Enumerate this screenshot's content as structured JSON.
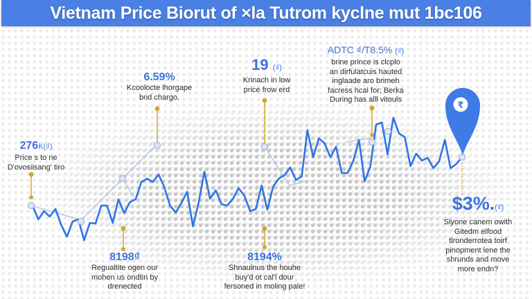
{
  "title": "Vietnam Price Biorut of ×la Tutrom kyclne mut 1bc106",
  "colors": {
    "title_bar": "#4a7fe3",
    "line": "#2f74e6",
    "connector": "#d4a72c",
    "accent_text": "#3b73dc",
    "secondary_line": "#b8c8e6"
  },
  "chart_data": {
    "type": "line",
    "title": "Vietnam Price Biorut of ×la Tutrom kyclne mut 1bc106",
    "xlabel": "",
    "ylabel": "",
    "axes_visible": false,
    "grid": false,
    "values": [
      53,
      33,
      45,
      37,
      48,
      25,
      8,
      30,
      33,
      3,
      28,
      27,
      53,
      53,
      28,
      62,
      42,
      58,
      62,
      87,
      92,
      87,
      98,
      80,
      53,
      43,
      57,
      73,
      23,
      57,
      102,
      63,
      75,
      55,
      53,
      63,
      78,
      67,
      45,
      48,
      82,
      47,
      80,
      92,
      97,
      108,
      90,
      95,
      162,
      123,
      150,
      143,
      123,
      138,
      100,
      100,
      117,
      148,
      88,
      110,
      170,
      173,
      127,
      180,
      157,
      152,
      110,
      128,
      118,
      122,
      107,
      117,
      148,
      107,
      113,
      123
    ],
    "annotations": [
      {
        "value": "276",
        "unit": "K(₫)",
        "lines": [
          "Price s to ne",
          "D'ovosiisang' tiro"
        ]
      },
      {
        "value": "6.59%",
        "unit": "",
        "lines": [
          "Kcoolocte lhorgape",
          "bnd chargo."
        ]
      },
      {
        "value": "19",
        "unit": "(₫)",
        "lines": [
          "Krinach in low",
          "price frow erd"
        ]
      },
      {
        "value": "ADTC ₫/T8.5%",
        "unit": "(₫)",
        "lines": [
          "brine prince is clcplo",
          "an dirfulatcuis hauted",
          "inglaade aro brimeh",
          "facress hcal for; Berka",
          "During has alll vitouls"
        ]
      },
      {
        "value": "8198₫",
        "unit": "",
        "lines": [
          "Regualtite ogen our",
          "mohen us ondtin by",
          "drenected"
        ]
      },
      {
        "value": "8194%",
        "unit": "",
        "lines": [
          "Shnaulnus the houhe",
          "buy'd ot cal'l dour",
          "fersoned in moling pale!"
        ]
      },
      {
        "value": "$3%.",
        "unit": "(₫)",
        "lines": [
          "Siyone canem owith",
          "Gitedm elfood",
          "tlronderrotea toirf",
          "pinopment lene the",
          "shrunds and move",
          "more endn?"
        ]
      }
    ]
  },
  "pin": {
    "icon": "rupee-map-pin-icon",
    "symbol": "₹"
  }
}
